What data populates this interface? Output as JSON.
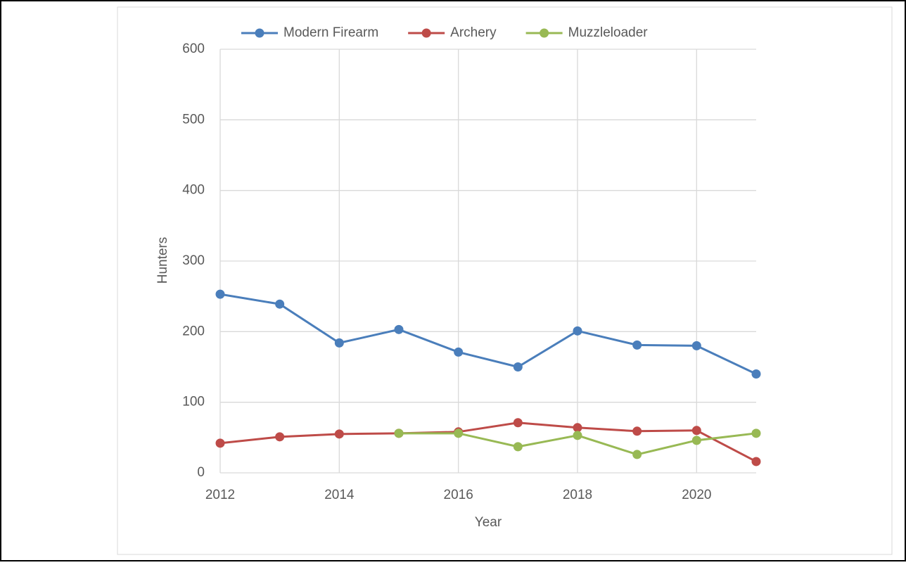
{
  "chart_data": {
    "type": "line",
    "x_label": "Year",
    "y_label": "Hunters",
    "x": [
      2012,
      2013,
      2014,
      2015,
      2016,
      2017,
      2018,
      2019,
      2020,
      2021
    ],
    "series": [
      {
        "name": "Modern Firearm",
        "color": "#4a7ebb",
        "values": [
          253,
          239,
          184,
          203,
          171,
          150,
          201,
          181,
          180,
          140
        ]
      },
      {
        "name": "Archery",
        "color": "#be4b48",
        "values": [
          42,
          51,
          55,
          56,
          58,
          71,
          64,
          59,
          60,
          16
        ]
      },
      {
        "name": "Muzzleloader",
        "color": "#98b954",
        "values": [
          null,
          null,
          null,
          56,
          56,
          37,
          53,
          26,
          46,
          56
        ]
      }
    ],
    "xlim": [
      2012,
      2021
    ],
    "xticks": [
      2012,
      2014,
      2016,
      2018,
      2020
    ],
    "ylim": [
      0,
      600
    ],
    "yticks": [
      0,
      100,
      200,
      300,
      400,
      500,
      600
    ],
    "grid": true,
    "legend": "top"
  }
}
